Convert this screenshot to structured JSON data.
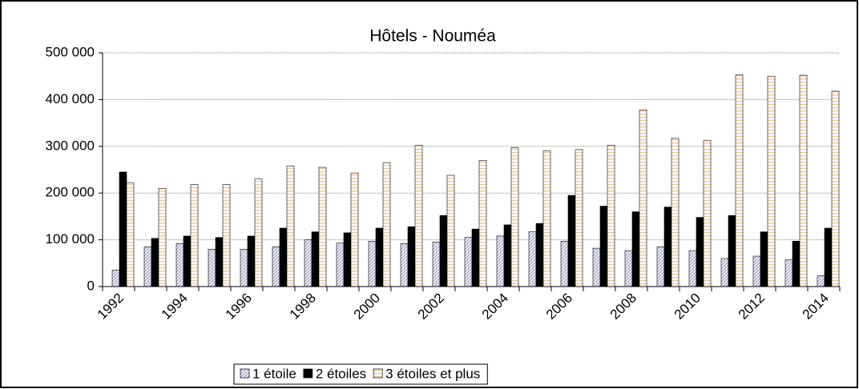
{
  "chart_data": {
    "type": "bar",
    "title": "Hôtels - Nouméa",
    "categories": [
      "1992",
      null,
      "1994",
      null,
      "1996",
      null,
      "1998",
      null,
      "2000",
      null,
      "2002",
      null,
      "2004",
      null,
      "2006",
      null,
      "2008",
      null,
      "2010",
      null,
      "2012",
      null,
      "2014"
    ],
    "series": [
      {
        "name": "1 étoile",
        "color": "#8e96c8",
        "pattern": "diagonal",
        "values": [
          35000,
          85000,
          92000,
          80000,
          80000,
          85000,
          100000,
          93000,
          97000,
          92000,
          95000,
          105000,
          108000,
          117000,
          97000,
          82000,
          77000,
          85000,
          77000,
          60000,
          65000,
          57000,
          23000
        ]
      },
      {
        "name": "2 étoiles",
        "color": "#000000",
        "pattern": "solid",
        "values": [
          245000,
          103000,
          108000,
          105000,
          108000,
          125000,
          117000,
          115000,
          125000,
          128000,
          152000,
          123000,
          132000,
          135000,
          195000,
          172000,
          160000,
          170000,
          148000,
          152000,
          117000,
          97000,
          125000
        ]
      },
      {
        "name": "3 étoiles et plus",
        "color": "#e8c890",
        "pattern": "horizontal",
        "values": [
          222000,
          210000,
          218000,
          218000,
          230000,
          258000,
          255000,
          243000,
          265000,
          302000,
          238000,
          270000,
          297000,
          290000,
          293000,
          302000,
          378000,
          317000,
          313000,
          453000,
          450000,
          452000,
          418000
        ]
      }
    ],
    "ylim": [
      0,
      500000
    ],
    "yticks": [
      0,
      {
        "value": 100000,
        "label": "100 000"
      },
      {
        "value": 200000,
        "label": "200 000"
      },
      {
        "value": 300000,
        "label": "300 000"
      },
      {
        "value": 400000,
        "label": "400 000"
      },
      {
        "value": 500000,
        "label": "500 000"
      }
    ],
    "grid": true,
    "legend": "bottom"
  }
}
